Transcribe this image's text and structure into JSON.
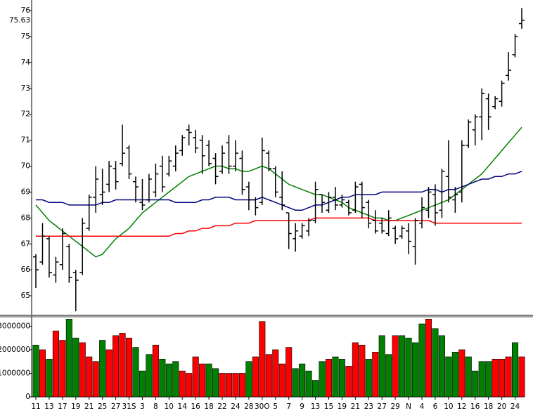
{
  "chart_data": {
    "type": "ohlc",
    "categories": [
      "11",
      null,
      "13",
      null,
      "17",
      null,
      "19",
      null,
      "21",
      null,
      "25",
      null,
      "27",
      null,
      "31S",
      null,
      "3",
      null,
      "8",
      null,
      "10",
      null,
      "14",
      null,
      "16",
      null,
      "18",
      null,
      "22",
      null,
      "24",
      null,
      "28",
      null,
      "30O",
      null,
      "5",
      null,
      "7",
      null,
      "9",
      null,
      "13",
      null,
      "15",
      null,
      "19",
      null,
      "21",
      null,
      "23",
      null,
      "27",
      null,
      "29",
      null,
      "N",
      null,
      "4",
      null,
      "6",
      null,
      "10",
      null,
      "12",
      null,
      "16",
      null,
      "18",
      null,
      "20",
      null,
      "24",
      null
    ],
    "open": [
      66.5,
      66.3,
      67.2,
      65.8,
      66.2,
      66.9,
      65.9,
      65.9,
      67.6,
      68.8,
      68.9,
      69.3,
      69.9,
      70.1,
      70.7,
      69.4,
      68.6,
      68.7,
      69.0,
      70.0,
      69.7,
      70.0,
      70.6,
      71.4,
      71.1,
      71.0,
      70.8,
      70.3,
      69.8,
      70.9,
      70.0,
      70.3,
      69.2,
      68.7,
      68.6,
      70.5,
      69.9,
      68.8,
      68.2,
      67.2,
      67.3,
      67.5,
      67.9,
      68.9,
      68.3,
      68.8,
      68.5,
      68.6,
      68.3,
      69.3,
      68.6,
      67.9,
      67.8,
      67.4,
      67.6,
      67.3,
      67.5,
      66.9,
      67.8,
      68.3,
      68.9,
      68.3,
      69.6,
      68.7,
      69.0,
      70.8,
      71.4,
      71.9,
      72.6,
      72.3,
      72.5,
      73.5,
      74.3,
      75.5
    ],
    "high": [
      66.6,
      67.8,
      67.3,
      66.5,
      67.6,
      67.0,
      66.0,
      68.0,
      68.9,
      70.0,
      69.9,
      70.2,
      70.2,
      71.6,
      70.8,
      69.6,
      69.5,
      69.7,
      70.1,
      70.4,
      70.4,
      70.8,
      71.2,
      71.6,
      71.4,
      71.2,
      71.0,
      70.5,
      70.8,
      71.2,
      71.0,
      70.6,
      69.4,
      68.8,
      71.1,
      70.6,
      70.0,
      69.8,
      68.2,
      67.8,
      67.8,
      68.0,
      69.4,
      68.9,
      69.0,
      69.2,
      68.9,
      68.7,
      69.4,
      69.4,
      68.7,
      68.3,
      68.0,
      68.3,
      67.7,
      67.7,
      67.8,
      68.0,
      68.8,
      69.2,
      69.3,
      69.9,
      71.0,
      69.2,
      71.0,
      71.8,
      72.0,
      73.0,
      72.8,
      72.7,
      73.3,
      74.4,
      75.1,
      76.1
    ],
    "low": [
      65.3,
      66.2,
      65.7,
      65.5,
      66.0,
      65.5,
      64.4,
      65.8,
      67.5,
      68.2,
      68.5,
      69.0,
      69.1,
      70.0,
      69.5,
      68.6,
      68.3,
      68.6,
      68.8,
      69.0,
      69.6,
      69.8,
      70.4,
      70.8,
      70.5,
      69.7,
      70.0,
      69.3,
      69.7,
      69.7,
      69.8,
      68.9,
      68.3,
      68.1,
      68.5,
      69.8,
      68.8,
      68.3,
      66.8,
      66.7,
      67.2,
      67.3,
      67.8,
      68.2,
      68.2,
      68.3,
      68.4,
      68.1,
      68.2,
      68.0,
      67.6,
      67.4,
      67.4,
      67.3,
      67.0,
      67.2,
      66.6,
      66.2,
      67.6,
      68.0,
      67.7,
      68.0,
      68.6,
      68.2,
      68.6,
      70.7,
      70.8,
      71.0,
      71.4,
      72.2,
      72.3,
      73.3,
      74.2,
      75.3
    ],
    "close": [
      66.0,
      67.3,
      65.9,
      66.3,
      67.4,
      65.7,
      65.6,
      67.8,
      68.8,
      69.5,
      69.0,
      70.0,
      69.4,
      70.5,
      69.7,
      69.2,
      68.5,
      69.5,
      69.7,
      69.2,
      70.2,
      70.5,
      71.1,
      71.3,
      70.7,
      70.4,
      70.1,
      69.6,
      70.5,
      70.0,
      70.5,
      69.1,
      68.7,
      68.4,
      70.6,
      69.9,
      69.0,
      68.5,
      67.4,
      67.5,
      67.7,
      67.9,
      69.1,
      68.6,
      68.8,
      68.5,
      68.7,
      68.2,
      69.2,
      68.4,
      67.8,
      67.5,
      67.5,
      68.0,
      67.2,
      67.6,
      67.1,
      67.9,
      68.4,
      69.0,
      68.2,
      69.8,
      68.8,
      68.9,
      70.8,
      71.7,
      71.9,
      72.8,
      71.9,
      72.6,
      73.2,
      73.7,
      75.0,
      75.63
    ],
    "last_price": 75.63,
    "ylim": [
      64.27,
      76.41
    ],
    "yticks": [
      65,
      66,
      67,
      68,
      69,
      70,
      71,
      72,
      73,
      74,
      75,
      76
    ],
    "bar_color": "#000000",
    "moving_averages": [
      {
        "color": "#008000",
        "values": [
          68.5,
          68.2,
          67.9,
          67.7,
          67.5,
          67.3,
          67.1,
          66.9,
          66.7,
          66.5,
          66.6,
          66.9,
          67.2,
          67.4,
          67.6,
          67.9,
          68.2,
          68.4,
          68.6,
          68.8,
          69.0,
          69.2,
          69.4,
          69.6,
          69.7,
          69.8,
          69.9,
          70.0,
          70.0,
          69.9,
          69.9,
          69.8,
          69.8,
          69.9,
          70.0,
          69.9,
          69.7,
          69.5,
          69.3,
          69.2,
          69.1,
          69.0,
          68.9,
          68.9,
          68.8,
          68.7,
          68.6,
          68.4,
          68.3,
          68.2,
          68.1,
          68.0,
          68.0,
          67.9,
          67.9,
          68.0,
          68.1,
          68.2,
          68.3,
          68.4,
          68.5,
          68.6,
          68.7,
          68.9,
          69.1,
          69.3,
          69.5,
          69.7,
          70.0,
          70.3,
          70.6,
          70.9,
          71.2,
          71.5
        ]
      },
      {
        "color": "#000080",
        "values": [
          68.7,
          68.7,
          68.6,
          68.6,
          68.6,
          68.5,
          68.5,
          68.5,
          68.5,
          68.5,
          68.6,
          68.6,
          68.7,
          68.7,
          68.7,
          68.7,
          68.7,
          68.7,
          68.7,
          68.7,
          68.7,
          68.6,
          68.6,
          68.6,
          68.6,
          68.7,
          68.7,
          68.8,
          68.8,
          68.8,
          68.7,
          68.7,
          68.7,
          68.7,
          68.8,
          68.7,
          68.6,
          68.5,
          68.4,
          68.3,
          68.3,
          68.4,
          68.5,
          68.5,
          68.6,
          68.7,
          68.8,
          68.8,
          68.9,
          68.9,
          68.9,
          68.9,
          69.0,
          69.0,
          69.0,
          69.0,
          69.0,
          69.0,
          69.0,
          69.1,
          69.1,
          69.0,
          69.1,
          69.1,
          69.2,
          69.3,
          69.4,
          69.5,
          69.5,
          69.6,
          69.6,
          69.7,
          69.7,
          69.8
        ]
      },
      {
        "color": "#ff0000",
        "values": [
          67.3,
          67.3,
          67.3,
          67.3,
          67.3,
          67.3,
          67.3,
          67.3,
          67.3,
          67.3,
          67.3,
          67.3,
          67.3,
          67.3,
          67.3,
          67.3,
          67.3,
          67.3,
          67.3,
          67.3,
          67.3,
          67.4,
          67.4,
          67.5,
          67.5,
          67.6,
          67.6,
          67.7,
          67.7,
          67.7,
          67.8,
          67.8,
          67.8,
          67.9,
          67.9,
          67.9,
          67.9,
          67.9,
          67.9,
          67.9,
          67.9,
          67.9,
          68.0,
          68.0,
          68.0,
          68.0,
          68.0,
          68.0,
          68.0,
          68.0,
          68.0,
          67.9,
          67.9,
          67.9,
          67.9,
          67.9,
          67.9,
          67.9,
          67.9,
          67.9,
          67.8,
          67.8,
          67.8,
          67.8,
          67.8,
          67.8,
          67.8,
          67.8,
          67.8,
          67.8,
          67.8,
          67.8,
          67.8,
          67.8
        ]
      }
    ],
    "volume": {
      "values": [
        2200000,
        2000000,
        1600000,
        2800000,
        2400000,
        3300000,
        2500000,
        2300000,
        1700000,
        1500000,
        2400000,
        2000000,
        2600000,
        2700000,
        2500000,
        2100000,
        1100000,
        1800000,
        2200000,
        1600000,
        1400000,
        1500000,
        1100000,
        1000000,
        1700000,
        1400000,
        1400000,
        1200000,
        1000000,
        1000000,
        1000000,
        1000000,
        1500000,
        1700000,
        3200000,
        1800000,
        2000000,
        1400000,
        2100000,
        1200000,
        1400000,
        1100000,
        700000,
        1500000,
        1600000,
        1700000,
        1600000,
        1300000,
        2300000,
        2200000,
        1600000,
        1900000,
        2600000,
        1800000,
        2600000,
        2600000,
        2500000,
        2300000,
        3100000,
        3300000,
        2900000,
        2600000,
        1700000,
        1900000,
        2000000,
        1700000,
        1100000,
        1500000,
        1500000,
        1600000,
        1600000,
        1700000,
        2300000,
        1700000
      ],
      "colors": [
        "#008000",
        "#ff0000",
        "#008000",
        "#ff0000",
        "#ff0000",
        "#008000",
        "#008000",
        "#ff0000",
        "#ff0000",
        "#ff0000",
        "#008000",
        "#ff0000",
        "#ff0000",
        "#ff0000",
        "#ff0000",
        "#008000",
        "#008000",
        "#008000",
        "#ff0000",
        "#008000",
        "#008000",
        "#008000",
        "#ff0000",
        "#ff0000",
        "#ff0000",
        "#ff0000",
        "#008000",
        "#008000",
        "#ff0000",
        "#ff0000",
        "#ff0000",
        "#ff0000",
        "#008000",
        "#ff0000",
        "#ff0000",
        "#ff0000",
        "#ff0000",
        "#ff0000",
        "#ff0000",
        "#008000",
        "#008000",
        "#008000",
        "#008000",
        "#008000",
        "#ff0000",
        "#008000",
        "#008000",
        "#ff0000",
        "#ff0000",
        "#ff0000",
        "#008000",
        "#ff0000",
        "#008000",
        "#008000",
        "#ff0000",
        "#008000",
        "#008000",
        "#008000",
        "#008000",
        "#ff0000",
        "#008000",
        "#008000",
        "#008000",
        "#008000",
        "#ff0000",
        "#008000",
        "#008000",
        "#008000",
        "#008000",
        "#ff0000",
        "#ff0000",
        "#ff0000",
        "#008000",
        "#ff0000"
      ],
      "ylim": [
        0,
        3370000
      ],
      "yticks": [
        0,
        1000000,
        2000000,
        3000000
      ]
    }
  }
}
